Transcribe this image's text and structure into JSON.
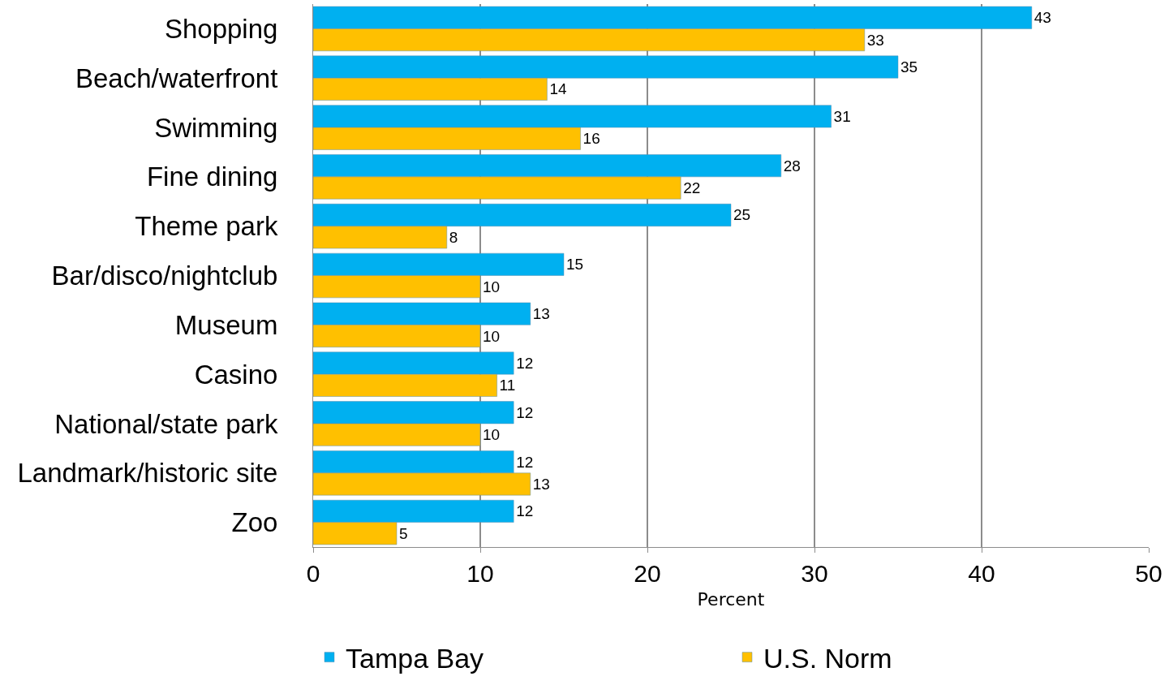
{
  "chart_data": {
    "type": "bar",
    "orientation": "horizontal",
    "categories": [
      "Shopping",
      "Beach/waterfront",
      "Swimming",
      "Fine dining",
      "Theme park",
      "Bar/disco/nightclub",
      "Museum",
      "Casino",
      "National/state park",
      "Landmark/historic site",
      "Zoo"
    ],
    "series": [
      {
        "name": "Tampa Bay",
        "color": "#00b0f0",
        "values": [
          43,
          35,
          31,
          28,
          25,
          15,
          13,
          12,
          12,
          12,
          12
        ]
      },
      {
        "name": "U.S. Norm",
        "color": "#ffc000",
        "values": [
          33,
          14,
          16,
          22,
          8,
          10,
          10,
          11,
          10,
          13,
          5
        ]
      }
    ],
    "xlabel": "Percent",
    "xlim": [
      0,
      50
    ],
    "xticks": [
      0,
      10,
      20,
      30,
      40,
      50
    ],
    "grid": "x",
    "legend": "bottom",
    "data_labels": true
  }
}
